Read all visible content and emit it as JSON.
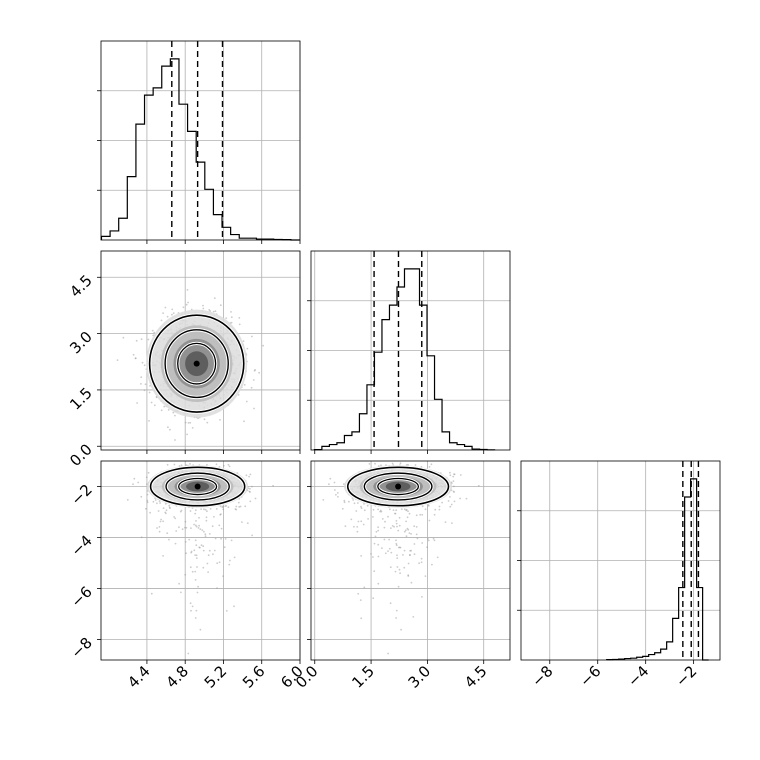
{
  "chart_data": [
    {
      "type": "histogram",
      "panel": "hist-x",
      "x": [
        3.97,
        4.06,
        4.15,
        4.24,
        4.33,
        4.42,
        4.51,
        4.6,
        4.69,
        4.78,
        4.87,
        4.96,
        5.05,
        5.14,
        5.23,
        5.32,
        5.41,
        5.5,
        5.59,
        5.68,
        5.77,
        5.86,
        5.95
      ],
      "values": [
        2,
        5,
        12,
        35,
        64,
        80,
        84,
        96,
        100,
        75,
        60,
        43,
        28,
        14,
        7,
        3,
        1,
        1,
        0.5,
        0.5,
        0.3,
        0.2,
        0
      ],
      "quantiles": [
        4.66,
        4.93,
        5.19
      ],
      "xlim": [
        3.92,
        6.0
      ],
      "xticks": [
        4.4,
        4.8,
        5.2,
        5.6,
        6.0
      ],
      "grid": true
    },
    {
      "type": "histogram",
      "panel": "hist-y",
      "x": [
        0.09,
        0.29,
        0.49,
        0.69,
        0.89,
        1.09,
        1.29,
        1.49,
        1.69,
        1.89,
        2.09,
        2.29,
        2.49,
        2.69,
        2.89,
        3.09,
        3.29,
        3.49,
        3.69,
        3.89,
        4.09,
        4.29,
        4.49,
        4.69
      ],
      "values": [
        0.2,
        2,
        3,
        4,
        8,
        10,
        20,
        36,
        54,
        72,
        80,
        90,
        100,
        100,
        80,
        52,
        28,
        10,
        4,
        3,
        2,
        0.5,
        0.3,
        0.1
      ],
      "quantiles": [
        1.58,
        2.23,
        2.85
      ],
      "xlim": [
        -0.1,
        5.2
      ],
      "xticks": [
        0.0,
        1.5,
        3.0,
        4.5
      ],
      "grid": true
    },
    {
      "type": "histogram",
      "panel": "hist-z",
      "x": [
        -5.5,
        -5.25,
        -5.0,
        -4.75,
        -4.5,
        -4.25,
        -4.0,
        -3.75,
        -3.5,
        -3.25,
        -3.0,
        -2.75,
        -2.5,
        -2.25,
        -2.0,
        -1.75,
        -1.5
      ],
      "values": [
        0.2,
        0.3,
        0.5,
        0.8,
        1,
        1.5,
        2,
        3,
        4,
        6,
        10,
        23,
        40,
        90,
        100,
        40,
        0
      ],
      "quantiles": [
        -2.45,
        -2.1,
        -1.8
      ],
      "xlim": [
        -9.2,
        -0.9
      ],
      "xticks": [
        -8,
        -6,
        -4,
        -2
      ],
      "xtick_labels": [
        "−8",
        "−6",
        "−4",
        "−2"
      ],
      "grid": true
    },
    {
      "type": "scatter",
      "panel": "xy",
      "center": [
        4.92,
        2.2
      ],
      "spread": [
        0.22,
        0.6
      ],
      "xlim": [
        3.92,
        6.0
      ],
      "ylim": [
        -0.1,
        5.2
      ],
      "yticks": [
        0.0,
        1.5,
        3.0,
        4.5
      ],
      "contours": [
        "inner",
        "middle",
        "outer"
      ],
      "grid": true
    },
    {
      "type": "scatter",
      "panel": "xz",
      "center": [
        4.93,
        -2.0
      ],
      "spread": [
        0.22,
        0.35
      ],
      "xlim": [
        3.92,
        6.0
      ],
      "ylim": [
        -8.8,
        -1.0
      ],
      "xticks": [
        4.4,
        4.8,
        5.2,
        5.6,
        6.0
      ],
      "yticks": [
        -8,
        -6,
        -4,
        -2
      ],
      "ytick_labels": [
        "−8",
        "−6",
        "−4",
        "−2"
      ],
      "contours": [
        "inner",
        "middle",
        "outer"
      ],
      "grid": true
    },
    {
      "type": "scatter",
      "panel": "yz",
      "center": [
        2.22,
        -2.0
      ],
      "spread": [
        0.6,
        0.35
      ],
      "xlim": [
        -0.1,
        5.2
      ],
      "ylim": [
        -8.8,
        -1.0
      ],
      "xticks": [
        0.0,
        1.5,
        3.0,
        4.5
      ],
      "contours": [
        "inner",
        "middle",
        "outer"
      ],
      "grid": true
    }
  ],
  "style": {
    "line_color": "#000000",
    "grid_color": "#b0b0b0",
    "point_color": "#9a9a9a"
  }
}
